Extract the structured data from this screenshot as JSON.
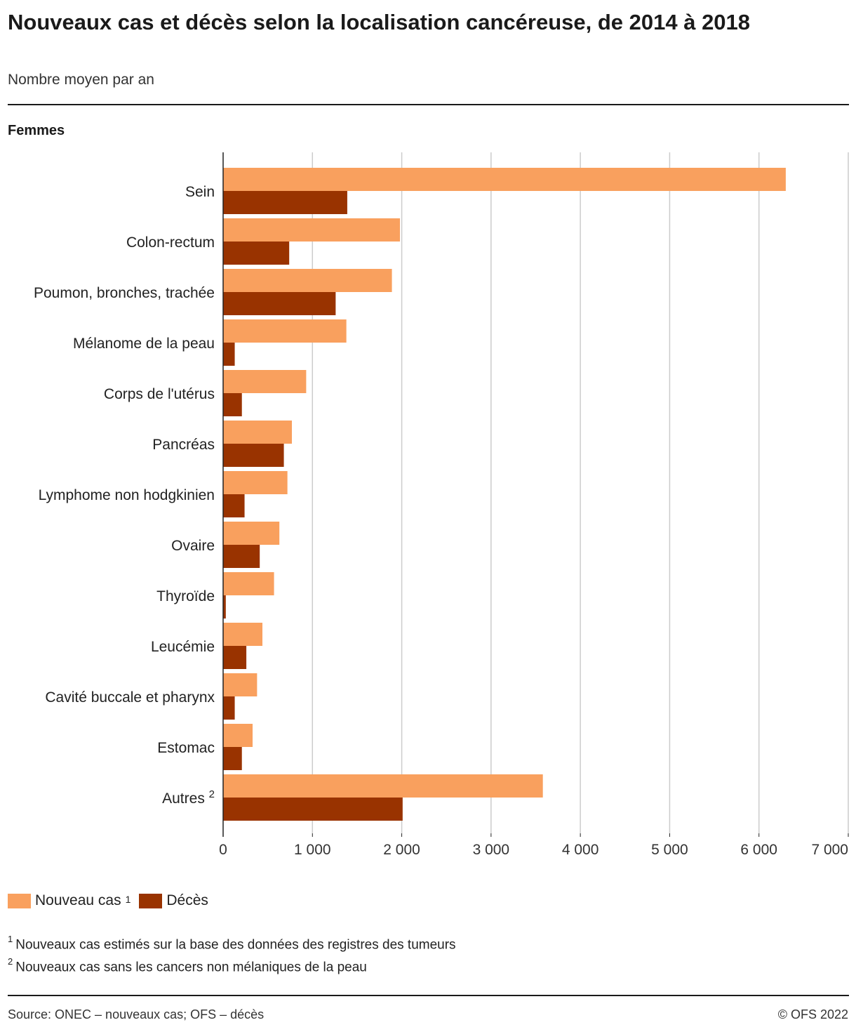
{
  "header": {
    "title": "Nouveaux cas et décès selon la localisation cancéreuse, de 2014 à 2018",
    "subtitle": "Nombre moyen par an",
    "panel_label": "Femmes"
  },
  "colors": {
    "new_cases": "#f9a05e",
    "deaths": "#993300",
    "grid": "#cccccc",
    "axis": "#222222"
  },
  "chart_data": {
    "type": "bar",
    "orientation": "horizontal",
    "title": "Nouveaux cas et décès selon la localisation cancéreuse, de 2014 à 2018",
    "subtitle": "Nombre moyen par an",
    "panel": "Femmes",
    "categories": [
      {
        "label": "Sein",
        "sup": ""
      },
      {
        "label": "Colon-rectum",
        "sup": ""
      },
      {
        "label": "Poumon, bronches, trachée",
        "sup": ""
      },
      {
        "label": "Mélanome de la peau",
        "sup": ""
      },
      {
        "label": "Corps de l'utérus",
        "sup": ""
      },
      {
        "label": "Pancréas",
        "sup": ""
      },
      {
        "label": "Lymphome non hodgkinien",
        "sup": ""
      },
      {
        "label": "Ovaire",
        "sup": ""
      },
      {
        "label": "Thyroïde",
        "sup": ""
      },
      {
        "label": "Leucémie",
        "sup": ""
      },
      {
        "label": "Cavité buccale et pharynx",
        "sup": ""
      },
      {
        "label": "Estomac",
        "sup": ""
      },
      {
        "label": "Autres",
        "sup": "2"
      }
    ],
    "series": [
      {
        "name": "Nouveau cas",
        "sup": "1",
        "values": [
          6300,
          1980,
          1890,
          1380,
          930,
          770,
          720,
          630,
          570,
          440,
          380,
          330,
          3580
        ]
      },
      {
        "name": "Décès",
        "sup": "",
        "values": [
          1390,
          740,
          1260,
          130,
          210,
          680,
          240,
          410,
          30,
          260,
          130,
          210,
          2010
        ]
      }
    ],
    "xlim": [
      0,
      7000
    ],
    "ticks": [
      0,
      1000,
      2000,
      3000,
      4000,
      5000,
      6000,
      7000
    ],
    "tick_labels": [
      "0",
      "1 000",
      "2 000",
      "3 000",
      "4 000",
      "5 000",
      "6 000",
      "7 000"
    ],
    "grid": true,
    "legend_position": "bottom-left"
  },
  "legend": {
    "new_cases_label": "Nouveau cas",
    "new_cases_sup": "1",
    "deaths_label": "Décès"
  },
  "footnotes": {
    "note1_mark": "1",
    "note1": "Nouveaux cas estimés sur la base des données des registres des tumeurs",
    "note2_mark": "2",
    "note2": "Nouveaux cas sans les cancers non mélaniques de la peau"
  },
  "footer": {
    "source": "Source: ONEC – nouveaux cas; OFS – décès",
    "copyright": "© OFS 2022"
  }
}
